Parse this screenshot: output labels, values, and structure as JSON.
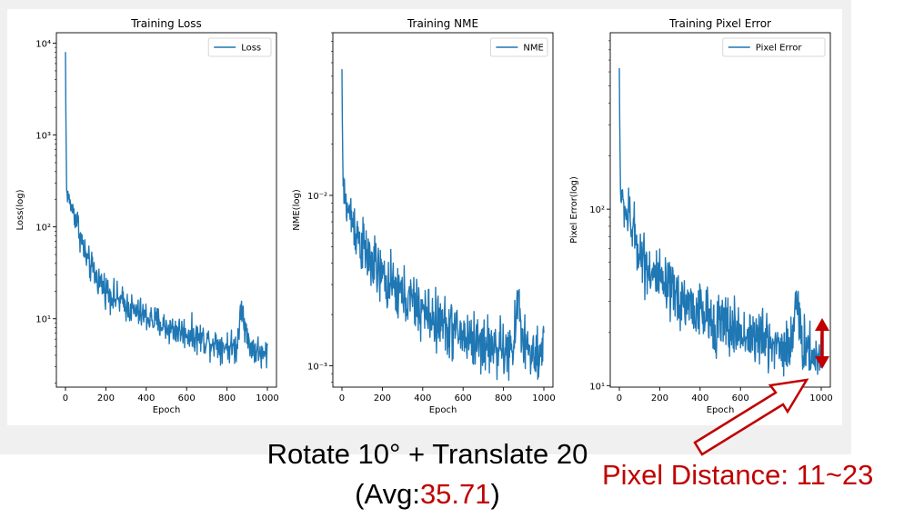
{
  "chart_data": [
    {
      "type": "line",
      "title": "Training Loss",
      "xlabel": "Epoch",
      "ylabel": "Loss(log)",
      "yscale": "log",
      "xlim": [
        -45,
        1045
      ],
      "ylim": [
        1.8,
        13000
      ],
      "x_ticks": [
        0,
        200,
        400,
        600,
        800,
        1000
      ],
      "y_ticks": [
        {
          "value": 10,
          "label": "10¹"
        },
        {
          "value": 100,
          "label": "10²"
        },
        {
          "value": 1000,
          "label": "10³"
        },
        {
          "value": 10000,
          "label": "10⁴"
        }
      ],
      "legend": {
        "position": "top-right",
        "entries": [
          "Loss"
        ]
      },
      "series": [
        {
          "name": "Loss",
          "color": "#1f77b4",
          "points": [
            [
              0,
              8000
            ],
            [
              3,
              900
            ],
            [
              6,
              240
            ],
            [
              15,
              210
            ],
            [
              25,
              170
            ],
            [
              40,
              150
            ],
            [
              60,
              110
            ],
            [
              80,
              70
            ],
            [
              100,
              48
            ],
            [
              120,
              38
            ],
            [
              140,
              32
            ],
            [
              160,
              27
            ],
            [
              180,
              24
            ],
            [
              200,
              21
            ],
            [
              220,
              19
            ],
            [
              240,
              17
            ],
            [
              260,
              16
            ],
            [
              280,
              15
            ],
            [
              300,
              14
            ],
            [
              320,
              13
            ],
            [
              340,
              12
            ],
            [
              360,
              11.5
            ],
            [
              380,
              11
            ],
            [
              400,
              10.5
            ],
            [
              420,
              10
            ],
            [
              440,
              9.5
            ],
            [
              460,
              9
            ],
            [
              480,
              8.5
            ],
            [
              500,
              8
            ],
            [
              520,
              7.8
            ],
            [
              540,
              7.6
            ],
            [
              560,
              7.4
            ],
            [
              580,
              7.2
            ],
            [
              600,
              7
            ],
            [
              620,
              6.7
            ],
            [
              640,
              6.4
            ],
            [
              660,
              6.2
            ],
            [
              680,
              6
            ],
            [
              700,
              5.8
            ],
            [
              720,
              5.6
            ],
            [
              740,
              5.5
            ],
            [
              760,
              5.3
            ],
            [
              780,
              5.2
            ],
            [
              800,
              5
            ],
            [
              820,
              4.9
            ],
            [
              840,
              4.8
            ],
            [
              850,
              5.2
            ],
            [
              860,
              8
            ],
            [
              870,
              16
            ],
            [
              880,
              12
            ],
            [
              890,
              8
            ],
            [
              900,
              6
            ],
            [
              920,
              5
            ],
            [
              940,
              4.6
            ],
            [
              960,
              4.3
            ],
            [
              980,
              3.8
            ],
            [
              1000,
              4.5
            ]
          ]
        }
      ]
    },
    {
      "type": "line",
      "title": "Training NME",
      "xlabel": "Epoch",
      "ylabel": "NME(log)",
      "yscale": "log",
      "xlim": [
        -45,
        1045
      ],
      "ylim": [
        0.00075,
        0.09
      ],
      "x_ticks": [
        0,
        200,
        400,
        600,
        800,
        1000
      ],
      "y_ticks": [
        {
          "value": 0.001,
          "label": "10⁻³"
        },
        {
          "value": 0.01,
          "label": "10⁻²"
        }
      ],
      "legend": {
        "position": "top-right",
        "entries": [
          "NME"
        ]
      },
      "series": [
        {
          "name": "NME",
          "color": "#1f77b4",
          "points": [
            [
              0,
              0.055
            ],
            [
              3,
              0.02
            ],
            [
              6,
              0.011
            ],
            [
              15,
              0.0095
            ],
            [
              25,
              0.0085
            ],
            [
              40,
              0.0078
            ],
            [
              60,
              0.0068
            ],
            [
              80,
              0.0058
            ],
            [
              100,
              0.005
            ],
            [
              120,
              0.0045
            ],
            [
              140,
              0.0041
            ],
            [
              160,
              0.0038
            ],
            [
              180,
              0.0035
            ],
            [
              200,
              0.0033
            ],
            [
              220,
              0.0031
            ],
            [
              240,
              0.0029
            ],
            [
              260,
              0.0028
            ],
            [
              280,
              0.0027
            ],
            [
              300,
              0.0026
            ],
            [
              320,
              0.0025
            ],
            [
              340,
              0.0024
            ],
            [
              360,
              0.0023
            ],
            [
              380,
              0.0022
            ],
            [
              400,
              0.0021
            ],
            [
              420,
              0.002
            ],
            [
              440,
              0.0019
            ],
            [
              460,
              0.00185
            ],
            [
              480,
              0.0018
            ],
            [
              500,
              0.00175
            ],
            [
              520,
              0.0017
            ],
            [
              540,
              0.00165
            ],
            [
              560,
              0.0016
            ],
            [
              580,
              0.00155
            ],
            [
              600,
              0.0015
            ],
            [
              620,
              0.00147
            ],
            [
              640,
              0.00144
            ],
            [
              660,
              0.0014
            ],
            [
              680,
              0.00137
            ],
            [
              700,
              0.00135
            ],
            [
              720,
              0.00132
            ],
            [
              740,
              0.0013
            ],
            [
              760,
              0.00128
            ],
            [
              780,
              0.00126
            ],
            [
              800,
              0.00124
            ],
            [
              820,
              0.00122
            ],
            [
              840,
              0.0012
            ],
            [
              850,
              0.00125
            ],
            [
              860,
              0.0017
            ],
            [
              870,
              0.0026
            ],
            [
              880,
              0.0021
            ],
            [
              890,
              0.0016
            ],
            [
              900,
              0.0014
            ],
            [
              920,
              0.00125
            ],
            [
              940,
              0.00115
            ],
            [
              960,
              0.0011
            ],
            [
              980,
              0.001
            ],
            [
              1000,
              0.0013
            ]
          ]
        }
      ]
    },
    {
      "type": "line",
      "title": "Training Pixel Error",
      "xlabel": "Epoch",
      "ylabel": "Pixel Error(log)",
      "yscale": "log",
      "xlim": [
        -45,
        1045
      ],
      "ylim": [
        9.8,
        1000
      ],
      "x_ticks": [
        0,
        200,
        400,
        600,
        800,
        1000
      ],
      "y_ticks": [
        {
          "value": 10,
          "label": "10¹"
        },
        {
          "value": 100,
          "label": "10²"
        }
      ],
      "legend": {
        "position": "top-right",
        "entries": [
          "Pixel Error"
        ]
      },
      "series": [
        {
          "name": "Pixel Error",
          "color": "#1f77b4",
          "points": [
            [
              0,
              630
            ],
            [
              3,
              230
            ],
            [
              6,
              125
            ],
            [
              15,
              112
            ],
            [
              25,
              100
            ],
            [
              40,
              92
            ],
            [
              60,
              80
            ],
            [
              80,
              68
            ],
            [
              100,
              58
            ],
            [
              120,
              52
            ],
            [
              140,
              48
            ],
            [
              160,
              44
            ],
            [
              180,
              41
            ],
            [
              200,
              38
            ],
            [
              220,
              36
            ],
            [
              240,
              34
            ],
            [
              260,
              33
            ],
            [
              280,
              32
            ],
            [
              300,
              31
            ],
            [
              320,
              30
            ],
            [
              340,
              29
            ],
            [
              360,
              28
            ],
            [
              380,
              27
            ],
            [
              400,
              26
            ],
            [
              420,
              25
            ],
            [
              440,
              24
            ],
            [
              460,
              23.5
            ],
            [
              480,
              23
            ],
            [
              500,
              22.5
            ],
            [
              520,
              22
            ],
            [
              540,
              21.5
            ],
            [
              560,
              21
            ],
            [
              580,
              20.5
            ],
            [
              600,
              20
            ],
            [
              620,
              19.7
            ],
            [
              640,
              19.4
            ],
            [
              660,
              19
            ],
            [
              680,
              18.7
            ],
            [
              700,
              18.4
            ],
            [
              720,
              18.1
            ],
            [
              740,
              17.8
            ],
            [
              760,
              17.5
            ],
            [
              780,
              17.2
            ],
            [
              800,
              17
            ],
            [
              820,
              16.7
            ],
            [
              840,
              16.5
            ],
            [
              850,
              17
            ],
            [
              860,
              22
            ],
            [
              870,
              32
            ],
            [
              880,
              27
            ],
            [
              890,
              21
            ],
            [
              900,
              18.5
            ],
            [
              920,
              17
            ],
            [
              940,
              16
            ],
            [
              960,
              15
            ],
            [
              980,
              14
            ],
            [
              1000,
              16.5
            ]
          ]
        }
      ]
    }
  ],
  "caption": {
    "line1": "Rotate 10° + Translate 20",
    "line2_prefix": "(Avg:",
    "line2_value": "35.71",
    "line2_suffix": ")",
    "pixel_distance_label": "Pixel Distance: 11~23"
  },
  "colors": {
    "accent_red": "#c00000",
    "line_blue": "#1f77b4",
    "annotation_arrow_fill": "#ffffff"
  }
}
